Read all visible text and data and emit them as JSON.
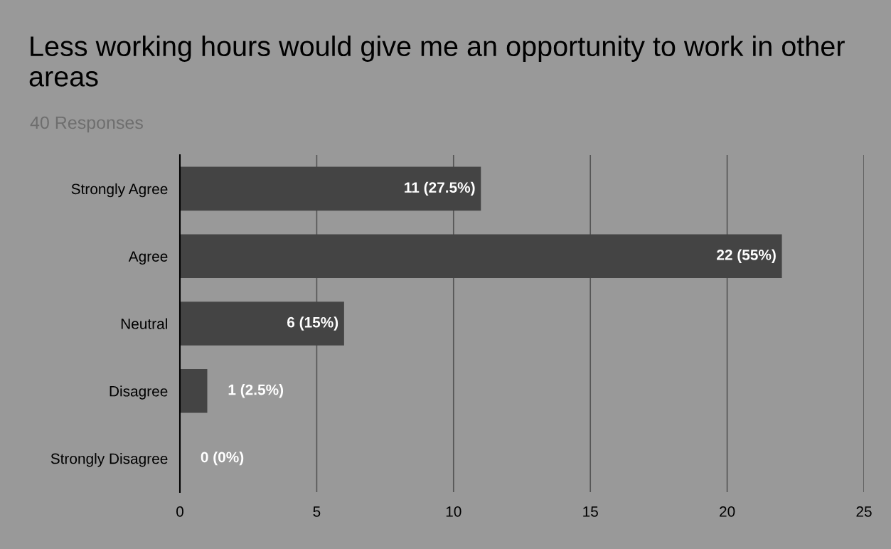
{
  "chart_data": {
    "type": "bar",
    "orientation": "horizontal",
    "title": "Less working hours would give me an opportunity to work in other areas",
    "subtitle": "40 Responses",
    "categories": [
      "Strongly Agree",
      "Agree",
      "Neutral",
      "Disagree",
      "Strongly Disagree"
    ],
    "values": [
      11,
      22,
      6,
      1,
      0
    ],
    "value_labels": [
      "11 (27.5%)",
      "22 (55%)",
      "6 (15%)",
      "1 (2.5%)",
      "0 (0%)"
    ],
    "color": "#444444",
    "xlim": [
      0,
      25
    ],
    "xticks": [
      0,
      5,
      10,
      15,
      20,
      25
    ],
    "grid": "x"
  }
}
